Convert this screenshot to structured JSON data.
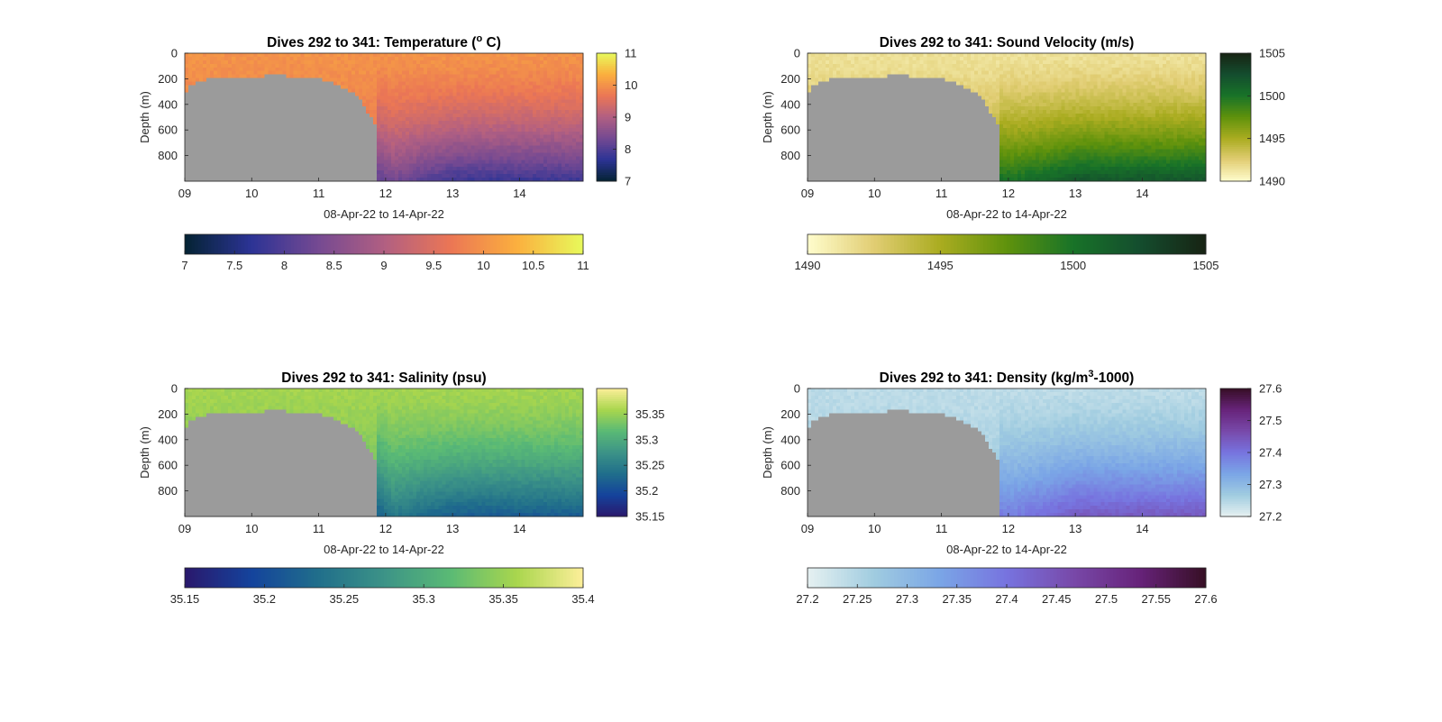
{
  "chart_data": [
    {
      "type": "heatmap",
      "title": {
        "pre": "Dives 292 to 341: Temperature (",
        "sup": "o",
        "post": " C)"
      },
      "xlabel": "08-Apr-22 to 14-Apr-22",
      "ylabel": "Depth (m)",
      "xticks": [
        "09",
        "10",
        "11",
        "12",
        "13",
        "14"
      ],
      "yticks": [
        "0",
        "200",
        "400",
        "600",
        "800"
      ],
      "xlim": [
        9.0,
        14.95
      ],
      "ylim": [
        0,
        1000
      ],
      "colormap": "thermal",
      "cmap_stops": [
        "#042333",
        "#2c3395",
        "#744992",
        "#b15f82",
        "#eb7655",
        "#fbaf3e",
        "#e8fa5b"
      ],
      "clim": [
        7,
        11
      ],
      "fields": {
        "surface": 10.0,
        "deep_early": 9.3,
        "deep_late": 7.8,
        "front_shift": -0.4
      },
      "colorbar_right": {
        "ticks": [
          "7",
          "8",
          "9",
          "10",
          "11"
        ],
        "values": [
          7,
          8,
          9,
          10,
          11
        ]
      },
      "colorbar_bottom": {
        "ticks": [
          "7",
          "7.5",
          "8",
          "8.5",
          "9",
          "9.5",
          "10",
          "10.5",
          "11"
        ],
        "values": [
          7,
          7.5,
          8,
          8.5,
          9,
          9.5,
          10,
          10.5,
          11
        ]
      }
    },
    {
      "type": "heatmap",
      "title": {
        "pre": "Dives 292 to 341: Sound Velocity (m/s)",
        "sup": "",
        "post": ""
      },
      "xlabel": "08-Apr-22 to 14-Apr-22",
      "ylabel": "Depth (m)",
      "xticks": [
        "09",
        "10",
        "11",
        "12",
        "13",
        "14"
      ],
      "yticks": [
        "0",
        "200",
        "400",
        "600",
        "800"
      ],
      "xlim": [
        9.0,
        14.95
      ],
      "ylim": [
        0,
        1000
      ],
      "colormap": "speed",
      "cmap_stops": [
        "#fffdcd",
        "#e1cd73",
        "#aaac20",
        "#5f920c",
        "#187328",
        "#144d2e",
        "#172313"
      ],
      "clim": [
        1490,
        1505
      ],
      "fields": {
        "surface": 1491.5,
        "deep_early": 1497,
        "deep_late": 1502,
        "front_shift": 0.6
      },
      "colorbar_right": {
        "ticks": [
          "1490",
          "1495",
          "1500",
          "1505"
        ],
        "values": [
          1490,
          1495,
          1500,
          1505
        ]
      },
      "colorbar_bottom": {
        "ticks": [
          "1490",
          "1495",
          "1500",
          "1505"
        ],
        "values": [
          1490,
          1495,
          1500,
          1505
        ]
      }
    },
    {
      "type": "heatmap",
      "title": {
        "pre": "Dives 292 to 341: Salinity (psu)",
        "sup": "",
        "post": ""
      },
      "xlabel": "08-Apr-22 to 14-Apr-22",
      "ylabel": "Depth (m)",
      "xticks": [
        "09",
        "10",
        "11",
        "12",
        "13",
        "14"
      ],
      "yticks": [
        "0",
        "200",
        "400",
        "600",
        "800"
      ],
      "xlim": [
        9.0,
        14.95
      ],
      "ylim": [
        0,
        1000
      ],
      "colormap": "haline",
      "cmap_stops": [
        "#2a186c",
        "#14439c",
        "#206e8b",
        "#3c9387",
        "#5aba75",
        "#a9d64d",
        "#fdef9a"
      ],
      "clim": [
        35.15,
        35.4
      ],
      "fields": {
        "surface": 35.355,
        "deep_early": 35.3,
        "deep_late": 35.215,
        "front_shift": -0.04
      },
      "colorbar_right": {
        "ticks": [
          "35.15",
          "35.2",
          "35.25",
          "35.3",
          "35.35"
        ],
        "values": [
          35.15,
          35.2,
          35.25,
          35.3,
          35.35
        ]
      },
      "colorbar_bottom": {
        "ticks": [
          "35.15",
          "35.2",
          "35.25",
          "35.3",
          "35.35",
          "35.4"
        ],
        "values": [
          35.15,
          35.2,
          35.25,
          35.3,
          35.35,
          35.4
        ]
      }
    },
    {
      "type": "heatmap",
      "title": {
        "pre": "Dives 292 to 341: Density (kg/m",
        "sup": "3",
        "post": "-1000)"
      },
      "xlabel": "08-Apr-22 to 14-Apr-22",
      "ylabel": "Depth (m)",
      "xticks": [
        "09",
        "10",
        "11",
        "12",
        "13",
        "14"
      ],
      "yticks": [
        "0",
        "200",
        "400",
        "600",
        "800"
      ],
      "xlim": [
        9.0,
        14.95
      ],
      "ylim": [
        0,
        1000
      ],
      "colormap": "dense",
      "cmap_stops": [
        "#e6f1f1",
        "#a0cce0",
        "#7aa5e6",
        "#7773df",
        "#7849a9",
        "#67237a",
        "#360e24"
      ],
      "clim": [
        27.2,
        27.6
      ],
      "fields": {
        "surface": 27.24,
        "deep_early": 27.29,
        "deep_late": 27.44,
        "front_shift": 0.015
      },
      "colorbar_right": {
        "ticks": [
          "27.2",
          "27.3",
          "27.4",
          "27.5",
          "27.6"
        ],
        "values": [
          27.2,
          27.3,
          27.4,
          27.5,
          27.6
        ]
      },
      "colorbar_bottom": {
        "ticks": [
          "27.2",
          "27.25",
          "27.3",
          "27.35",
          "27.4",
          "27.45",
          "27.5",
          "27.55",
          "27.6"
        ],
        "values": [
          27.2,
          27.25,
          27.3,
          27.35,
          27.4,
          27.45,
          27.5,
          27.55,
          27.6
        ]
      }
    }
  ],
  "seafloor": {
    "color": "#9b9b9b",
    "front_day": 11.85,
    "profile": [
      [
        9.0,
        320
      ],
      [
        9.1,
        250
      ],
      [
        9.2,
        220
      ],
      [
        9.35,
        205
      ],
      [
        9.5,
        195
      ],
      [
        9.65,
        185
      ],
      [
        9.8,
        200
      ],
      [
        10.0,
        190
      ],
      [
        10.2,
        180
      ],
      [
        10.4,
        178
      ],
      [
        10.6,
        182
      ],
      [
        10.8,
        190
      ],
      [
        10.95,
        195
      ],
      [
        11.1,
        215
      ],
      [
        11.25,
        240
      ],
      [
        11.4,
        280
      ],
      [
        11.55,
        330
      ],
      [
        11.65,
        390
      ],
      [
        11.75,
        480
      ],
      [
        11.85,
        560
      ]
    ]
  },
  "colors": {
    "axis": "#262626",
    "missing": "#9b9b9b"
  }
}
